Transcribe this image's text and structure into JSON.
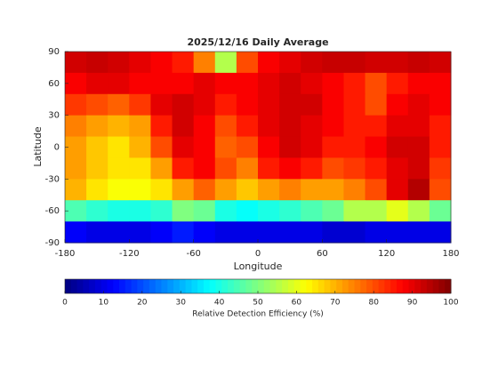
{
  "chart_data": {
    "type": "heatmap",
    "title": "2025/12/16 Daily Average",
    "xlabel": "Longitude",
    "ylabel": "Latitude",
    "xlim": [
      -180,
      180
    ],
    "xticks": [
      -180,
      -120,
      -60,
      0,
      60,
      120,
      180
    ],
    "ylim": [
      -90,
      90
    ],
    "yticks": [
      -90,
      -60,
      -30,
      0,
      30,
      60,
      90
    ],
    "x": [
      -170,
      -150,
      -130,
      -110,
      -90,
      -70,
      -50,
      -30,
      -10,
      10,
      30,
      50,
      70,
      90,
      110,
      130,
      150,
      170
    ],
    "y": [
      80,
      60,
      40,
      20,
      0,
      -20,
      -40,
      -60,
      -80
    ],
    "z": [
      [
        92,
        93,
        92,
        90,
        88,
        85,
        75,
        55,
        80,
        88,
        90,
        92,
        93,
        93,
        92,
        92,
        93,
        92
      ],
      [
        88,
        90,
        90,
        88,
        88,
        88,
        90,
        88,
        88,
        90,
        92,
        90,
        88,
        85,
        80,
        85,
        88,
        88
      ],
      [
        82,
        80,
        78,
        82,
        90,
        92,
        90,
        85,
        88,
        90,
        92,
        92,
        88,
        85,
        80,
        88,
        90,
        88
      ],
      [
        75,
        72,
        70,
        72,
        85,
        92,
        88,
        80,
        85,
        90,
        92,
        90,
        88,
        85,
        85,
        90,
        90,
        85
      ],
      [
        72,
        68,
        65,
        70,
        80,
        90,
        88,
        78,
        80,
        88,
        92,
        90,
        85,
        85,
        88,
        92,
        92,
        85
      ],
      [
        72,
        68,
        65,
        65,
        72,
        85,
        88,
        80,
        75,
        85,
        88,
        85,
        80,
        82,
        85,
        90,
        92,
        82
      ],
      [
        70,
        65,
        62,
        62,
        65,
        72,
        78,
        72,
        68,
        72,
        75,
        72,
        72,
        75,
        80,
        90,
        95,
        80
      ],
      [
        45,
        42,
        40,
        40,
        42,
        50,
        48,
        40,
        38,
        40,
        42,
        45,
        48,
        55,
        55,
        60,
        55,
        48
      ],
      [
        12,
        10,
        10,
        10,
        12,
        15,
        12,
        10,
        10,
        10,
        10,
        10,
        8,
        8,
        10,
        10,
        10,
        10
      ]
    ],
    "colormap": "jet",
    "colorbar": {
      "label": "Relative Detection Efficiency (%)",
      "lim": [
        0,
        100
      ],
      "ticks": [
        0,
        10,
        20,
        30,
        40,
        50,
        60,
        70,
        80,
        90,
        100
      ]
    }
  }
}
